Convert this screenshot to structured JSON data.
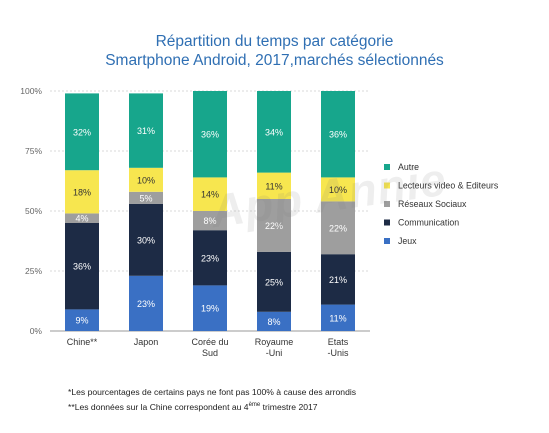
{
  "title_line1": "Répartition du temps par catégorie",
  "title_line2": "Smartphone Android, 2017,marchés sélectionnés",
  "watermark": "App Annie",
  "footnote1": "*Les pourcentages de certains pays ne font pas 100% à cause des arrondis",
  "footnote2_pre": "**Les données sur la Chine correspondent au 4",
  "footnote2_sup": "ème",
  "footnote2_post": " trimestre 2017",
  "chart_data": {
    "type": "bar",
    "stacked": true,
    "categories": [
      [
        "Chine**"
      ],
      [
        "Japon"
      ],
      [
        "Corée du",
        "Sud"
      ],
      [
        "Royaume",
        "-Uni"
      ],
      [
        "Etats",
        "-Unis"
      ]
    ],
    "ylim": [
      0,
      100
    ],
    "yticks": [
      0,
      25,
      50,
      75,
      100
    ],
    "ytick_labels": [
      "0%",
      "25%",
      "50%",
      "75%",
      "100%"
    ],
    "grid": true,
    "legend_position": "right",
    "series": [
      {
        "name": "Jeux",
        "color": "#3a70c4",
        "values": [
          9,
          23,
          19,
          8,
          11
        ]
      },
      {
        "name": "Communication",
        "color": "#1d2b45",
        "values": [
          36,
          30,
          23,
          25,
          21
        ]
      },
      {
        "name": "Réseaux Sociaux",
        "color": "#9e9e9e",
        "values": [
          4,
          5,
          8,
          22,
          22
        ]
      },
      {
        "name": "Lecteurs video & Editeurs",
        "color": "#f7e64f",
        "values": [
          18,
          10,
          14,
          11,
          10
        ]
      },
      {
        "name": "Autre",
        "color": "#17a68c",
        "values": [
          32,
          31,
          36,
          34,
          36
        ]
      }
    ],
    "legend_order": [
      "Autre",
      "Lecteurs video & Editeurs",
      "Réseaux Sociaux",
      "Communication",
      "Jeux"
    ]
  }
}
